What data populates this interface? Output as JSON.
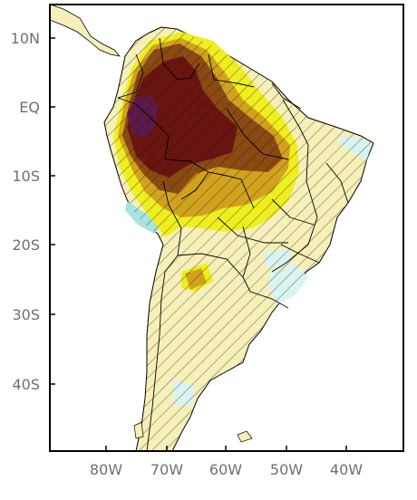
{
  "map": {
    "lat_labels": [
      "10N",
      "EQ",
      "10S",
      "20S",
      "30S",
      "40S"
    ],
    "lon_labels": [
      "80W",
      "70W",
      "60W",
      "50W",
      "40W"
    ],
    "colors": {
      "ocean": "#ffffff",
      "land_light": "#f6f0b8",
      "yellow": "#eeee20",
      "orange": "#d2a21e",
      "brown": "#8a4a12",
      "dark_red": "#6a1410",
      "purple": "#5b1a4a",
      "cyan_light": "#d9f4f0",
      "teal": "#a9e3de",
      "border": "#000000",
      "axis": "#000000"
    }
  }
}
